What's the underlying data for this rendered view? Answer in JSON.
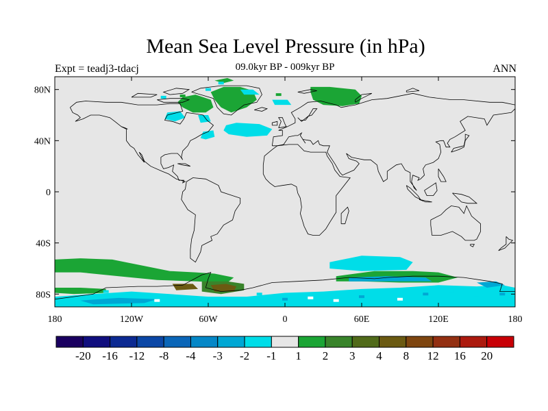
{
  "header": {
    "title": "Mean Sea Level Pressure (in hPa)",
    "left_label": "Expt = teadj3-tdacj",
    "center_label": "09.0kyr BP - 009kyr BP",
    "right_label": "ANN"
  },
  "map": {
    "projection": "cylindrical-equidistant",
    "background_color": "#e6e6e6",
    "coastline_color": "#000000",
    "x_ticks": [
      {
        "lon": -180,
        "label": "180"
      },
      {
        "lon": -120,
        "label": "120W"
      },
      {
        "lon": -60,
        "label": "60W"
      },
      {
        "lon": 0,
        "label": "0"
      },
      {
        "lon": 60,
        "label": "60E"
      },
      {
        "lon": 120,
        "label": "120E"
      },
      {
        "lon": 180,
        "label": "180"
      }
    ],
    "y_ticks": [
      {
        "lat": 80,
        "label": "80N"
      },
      {
        "lat": 40,
        "label": "40N"
      },
      {
        "lat": 0,
        "label": "0"
      },
      {
        "lat": -40,
        "label": "40S"
      },
      {
        "lat": -80,
        "label": "80S"
      }
    ],
    "anomaly_regions": [
      {
        "level": "1 to 2",
        "color": "#1ba535",
        "region": "Greenland",
        "outline": [
          [
            -58,
            78
          ],
          [
            -48,
            82
          ],
          [
            -35,
            82
          ],
          [
            -25,
            79
          ],
          [
            -22,
            72
          ],
          [
            -30,
            66
          ],
          [
            -42,
            62
          ],
          [
            -50,
            66
          ],
          [
            -55,
            72
          ]
        ]
      },
      {
        "level": "1 to 2",
        "color": "#1ba535",
        "region": "Canadian Arctic",
        "outline": [
          [
            -80,
            74
          ],
          [
            -70,
            76
          ],
          [
            -58,
            72
          ],
          [
            -56,
            66
          ],
          [
            -62,
            62
          ],
          [
            -72,
            62
          ],
          [
            -80,
            66
          ],
          [
            -84,
            70
          ]
        ]
      },
      {
        "level": "1 to 2",
        "color": "#1ba535",
        "region": "Arctic Ocean north",
        "outline": [
          [
            -55,
            87
          ],
          [
            -45,
            89
          ],
          [
            -40,
            87
          ],
          [
            -48,
            85
          ]
        ]
      },
      {
        "level": "1 to 2",
        "color": "#1ba535",
        "region": "Northern Eurasia",
        "outline": [
          [
            20,
            82
          ],
          [
            35,
            82
          ],
          [
            55,
            80
          ],
          [
            60,
            75
          ],
          [
            58,
            69
          ],
          [
            45,
            67
          ],
          [
            30,
            68
          ],
          [
            22,
            72
          ],
          [
            20,
            78
          ]
        ]
      },
      {
        "level": "1 to 2",
        "color": "#1ba535",
        "region": "Southern Ocean Pacific",
        "outline": [
          [
            -180,
            -53
          ],
          [
            -160,
            -52
          ],
          [
            -135,
            -53
          ],
          [
            -110,
            -58
          ],
          [
            -90,
            -62
          ],
          [
            -70,
            -63
          ],
          [
            -55,
            -64
          ],
          [
            -40,
            -67
          ],
          [
            -45,
            -71
          ],
          [
            -70,
            -70
          ],
          [
            -100,
            -69
          ],
          [
            -130,
            -66
          ],
          [
            -160,
            -63
          ],
          [
            -180,
            -63
          ]
        ]
      },
      {
        "level": "1 to 2",
        "color": "#1ba535",
        "region": "Southern Ocean Indian",
        "outline": [
          [
            40,
            -66
          ],
          [
            70,
            -62
          ],
          [
            100,
            -62
          ],
          [
            120,
            -63
          ],
          [
            135,
            -67
          ],
          [
            120,
            -71
          ],
          [
            90,
            -71
          ],
          [
            60,
            -70
          ],
          [
            40,
            -70
          ]
        ]
      },
      {
        "level": "1 to 2",
        "color": "#1ba535",
        "region": "Antarctic coast west",
        "outline": [
          [
            -180,
            -75
          ],
          [
            -160,
            -75
          ],
          [
            -140,
            -76
          ],
          [
            -140,
            -79
          ],
          [
            -165,
            -80
          ],
          [
            -180,
            -79
          ]
        ]
      },
      {
        "level": "2 to 3",
        "color": "#39842b",
        "region": "Weddell Sea",
        "outline": [
          [
            -65,
            -70
          ],
          [
            -45,
            -70
          ],
          [
            -32,
            -72
          ],
          [
            -32,
            -77
          ],
          [
            -50,
            -80
          ],
          [
            -65,
            -78
          ]
        ]
      },
      {
        "level": "4 to 8",
        "color": "#6b5a12",
        "region": "Weddell core",
        "outline": [
          [
            -58,
            -73
          ],
          [
            -46,
            -72
          ],
          [
            -38,
            -74
          ],
          [
            -40,
            -78
          ],
          [
            -55,
            -78
          ]
        ]
      },
      {
        "level": "4 to 8",
        "color": "#6b5a12",
        "region": "Antarctic Peninsula",
        "outline": [
          [
            -88,
            -72
          ],
          [
            -72,
            -72
          ],
          [
            -68,
            -76
          ],
          [
            -85,
            -77
          ]
        ]
      },
      {
        "level": "-1 to -2",
        "color": "#00dde8",
        "region": "North Atlantic",
        "outline": [
          [
            -46,
            52
          ],
          [
            -38,
            54
          ],
          [
            -20,
            53
          ],
          [
            -10,
            49
          ],
          [
            -14,
            44
          ],
          [
            -30,
            43
          ],
          [
            -44,
            45
          ],
          [
            -48,
            48
          ]
        ]
      },
      {
        "level": "-1 to -2",
        "color": "#00dde8",
        "region": "Hudson Bay",
        "outline": [
          [
            -92,
            62
          ],
          [
            -82,
            63
          ],
          [
            -78,
            58
          ],
          [
            -86,
            55
          ],
          [
            -94,
            57
          ]
        ]
      },
      {
        "level": "-1 to -2",
        "color": "#00dde8",
        "region": "Labrador coast",
        "outline": [
          [
            -68,
            60
          ],
          [
            -60,
            60
          ],
          [
            -58,
            55
          ],
          [
            -66,
            54
          ]
        ]
      },
      {
        "level": "-1 to -2",
        "color": "#00dde8",
        "region": "Newfoundland",
        "outline": [
          [
            -64,
            47
          ],
          [
            -56,
            48
          ],
          [
            -55,
            43
          ],
          [
            -62,
            41
          ],
          [
            -66,
            42
          ]
        ]
      },
      {
        "level": "-1 to -2",
        "color": "#00dde8",
        "region": "Barents",
        "outline": [
          [
            -35,
            80
          ],
          [
            -25,
            80
          ],
          [
            -20,
            76
          ],
          [
            -32,
            76
          ]
        ]
      },
      {
        "level": "-1 to -2",
        "color": "#00dde8",
        "region": "Norway coast",
        "outline": [
          [
            -10,
            72
          ],
          [
            2,
            72
          ],
          [
            5,
            68
          ],
          [
            -8,
            68
          ]
        ]
      },
      {
        "level": "-1 to -2",
        "color": "#00dde8",
        "region": "Southern Indian Ocean",
        "outline": [
          [
            35,
            -55
          ],
          [
            60,
            -50
          ],
          [
            90,
            -51
          ],
          [
            100,
            -55
          ],
          [
            95,
            -61
          ],
          [
            60,
            -62
          ],
          [
            35,
            -60
          ]
        ]
      },
      {
        "level": "-1 to -2",
        "color": "#00dde8",
        "region": "Antarctica interior",
        "outline": [
          [
            -180,
            -82
          ],
          [
            -150,
            -80
          ],
          [
            -120,
            -78
          ],
          [
            -90,
            -80
          ],
          [
            -60,
            -82
          ],
          [
            -30,
            -82
          ],
          [
            0,
            -79
          ],
          [
            30,
            -78
          ],
          [
            60,
            -76
          ],
          [
            90,
            -75
          ],
          [
            120,
            -73
          ],
          [
            150,
            -74
          ],
          [
            170,
            -73
          ],
          [
            180,
            -75
          ],
          [
            180,
            -90
          ],
          [
            -180,
            -90
          ]
        ]
      },
      {
        "level": "-2 to -3",
        "color": "#00a7d4",
        "region": "East Antarctic coast",
        "outline": [
          [
            50,
            -67
          ],
          [
            80,
            -66
          ],
          [
            110,
            -67
          ],
          [
            115,
            -70
          ],
          [
            80,
            -70
          ],
          [
            50,
            -70
          ]
        ]
      },
      {
        "level": "-2 to -3",
        "color": "#00a7d4",
        "region": "Ross Sea coast",
        "outline": [
          [
            150,
            -71
          ],
          [
            165,
            -70
          ],
          [
            172,
            -73
          ],
          [
            158,
            -75
          ]
        ]
      },
      {
        "level": "-2 to -3",
        "color": "#00a7d4",
        "region": "Antarctic interior 2",
        "outline": [
          [
            -160,
            -85
          ],
          [
            -130,
            -83
          ],
          [
            -100,
            -84
          ],
          [
            -110,
            -87
          ],
          [
            -150,
            -88
          ]
        ]
      }
    ],
    "speckles": [
      [
        -170,
        -77,
        "#1ba535"
      ],
      [
        -140,
        -78,
        "#00dde8"
      ],
      [
        -120,
        -80,
        "#00dde8"
      ],
      [
        -100,
        -85,
        "#ffffff"
      ],
      [
        -60,
        -85,
        "#00dde8"
      ],
      [
        -20,
        -80,
        "#00dde8"
      ],
      [
        0,
        -84,
        "#00a7d4"
      ],
      [
        20,
        -83,
        "#ffffff"
      ],
      [
        40,
        -85,
        "#ffffff"
      ],
      [
        60,
        -82,
        "#00a7d4"
      ],
      [
        90,
        -84,
        "#ffffff"
      ],
      [
        110,
        -80,
        "#00a7d4"
      ],
      [
        130,
        -78,
        "#00dde8"
      ],
      [
        150,
        -83,
        "#00dde8"
      ],
      [
        170,
        -80,
        "#00a7d4"
      ],
      [
        -80,
        75,
        "#1ba535"
      ],
      [
        -95,
        74,
        "#00dde8"
      ],
      [
        -60,
        80,
        "#00dde8"
      ],
      [
        -5,
        76,
        "#1ba535"
      ],
      [
        -50,
        85,
        "#00dde8"
      ]
    ]
  },
  "colorbar": {
    "colors": [
      "#1a0060",
      "#100e7e",
      "#0c2a92",
      "#0b47a6",
      "#0a66b8",
      "#0587c7",
      "#00a7d4",
      "#00dde8",
      "#e6e6e6",
      "#1ba535",
      "#39842b",
      "#516b1a",
      "#6b5a12",
      "#7e4610",
      "#933012",
      "#ac1a0e",
      "#c80006"
    ],
    "labels": [
      "-20",
      "-16",
      "-12",
      "-8",
      "-4",
      "-3",
      "-2",
      "-1",
      "1",
      "2",
      "3",
      "4",
      "8",
      "12",
      "16",
      "20"
    ]
  }
}
